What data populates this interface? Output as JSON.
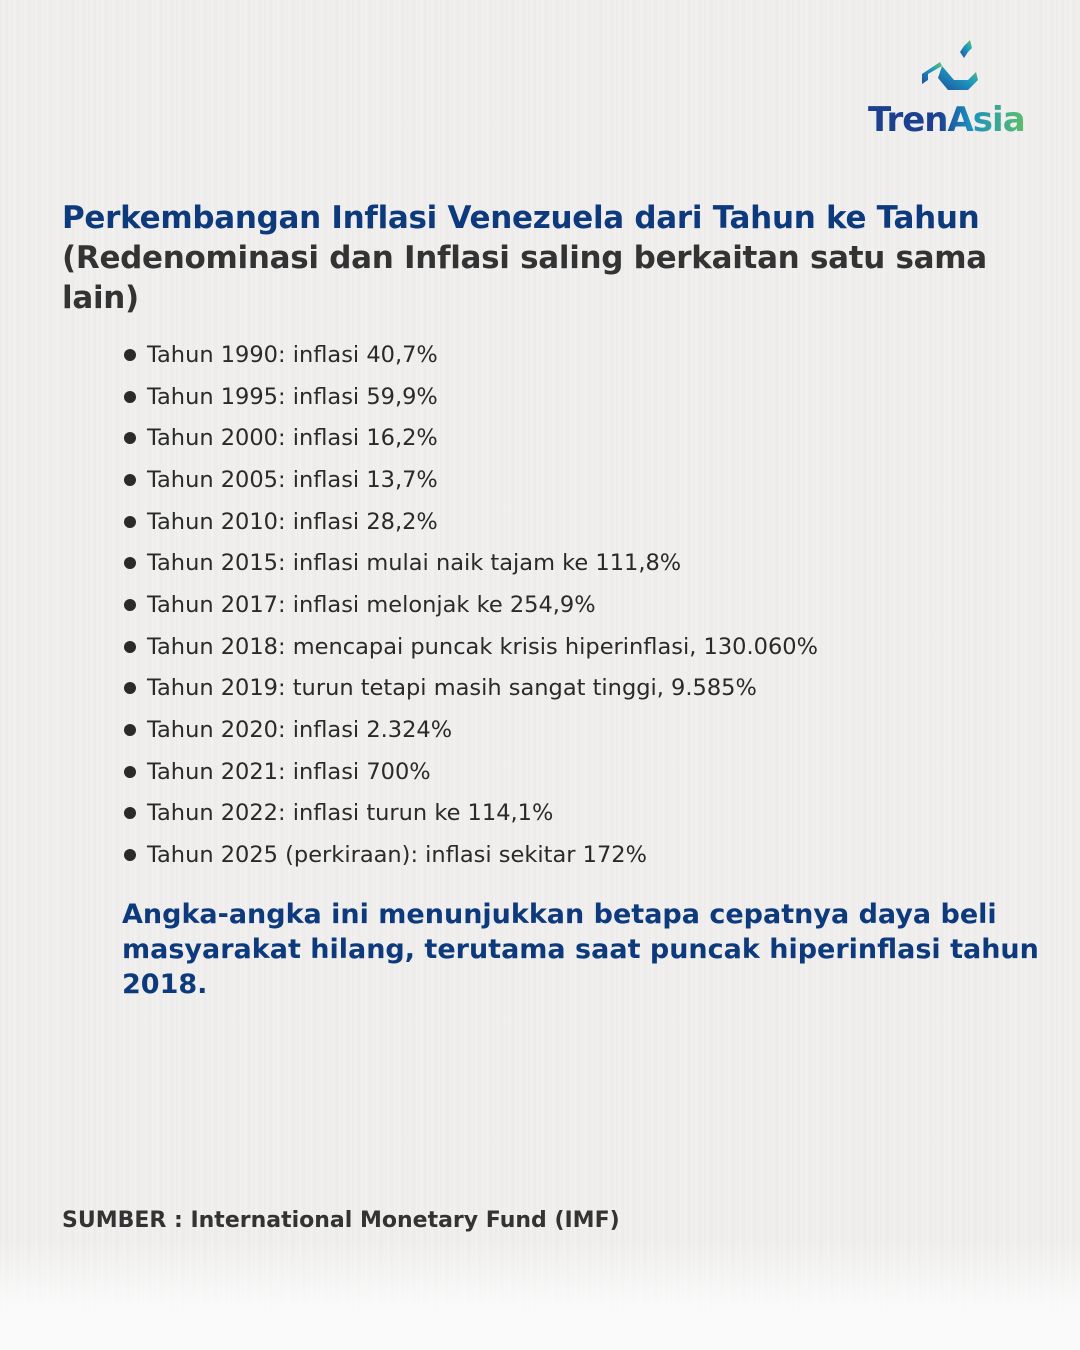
{
  "logo": {
    "text": "TrenAsia"
  },
  "title": {
    "blue_part": "Perkembangan Inflasi Venezuela dari Tahun ke Tahun",
    "dark_part": "(Redenominasi dan Inflasi saling berkaitan satu sama lain)"
  },
  "items": [
    "Tahun 1990: inflasi 40,7%",
    "Tahun 1995: inflasi 59,9%",
    "Tahun 2000: inflasi 16,2%",
    "Tahun 2005: inflasi 13,7%",
    "Tahun 2010: inflasi 28,2%",
    "Tahun 2015: inflasi mulai naik tajam ke 111,8%",
    "Tahun 2017: inflasi melonjak ke 254,9%",
    "Tahun 2018: mencapai puncak krisis hiperinflasi, 130.060%",
    "Tahun 2019: turun tetapi masih sangat tinggi, 9.585%",
    "Tahun 2020: inflasi 2.324%",
    "Tahun 2021: inflasi 700%",
    "Tahun 2022: inflasi turun ke 114,1%",
    "Tahun 2025 (perkiraan): inflasi sekitar 172%"
  ],
  "note": "Angka-angka ini menunjukkan betapa cepatnya daya beli masyarakat hilang, terutama saat puncak hiperinflasi tahun 2018.",
  "source": "SUMBER :  International Monetary Fund (IMF)",
  "colors": {
    "blue": "#0d3a7d",
    "dark": "#333333",
    "logo_green": "#5bbf6a"
  }
}
